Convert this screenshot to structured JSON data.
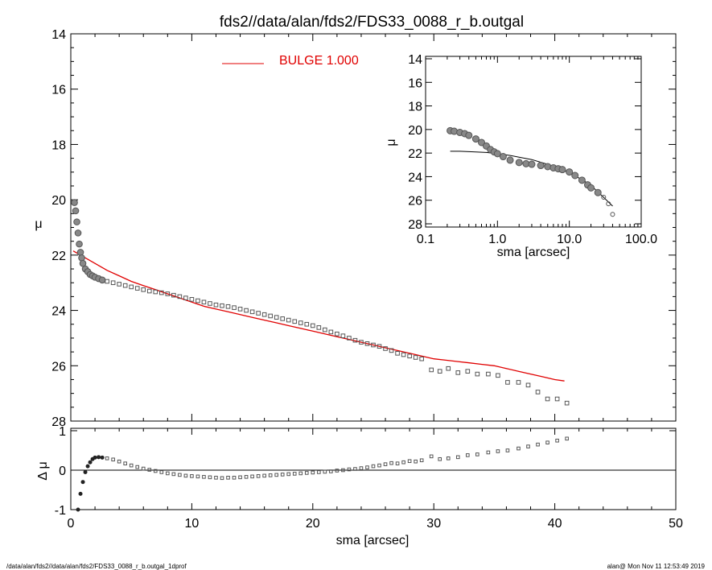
{
  "title": "fds2//data/alan/fds2/FDS33_0088_r_b.outgal",
  "footer": {
    "left": "/data/alan/fds2//data/alan/fds2/FDS33_0088_r_b.outgal_1dprof",
    "right": "alan@  Mon Nov 11 12:53:49 2019"
  },
  "colors": {
    "model": "#e00000",
    "data": "#555555",
    "axis": "#000000"
  },
  "chart_data": [
    {
      "type": "scatter",
      "name": "main-profile",
      "xlabel": "",
      "ylabel": "μ",
      "xlim": [
        0,
        50
      ],
      "ylim": [
        28,
        14
      ],
      "yticks": [
        14,
        16,
        18,
        20,
        22,
        24,
        26,
        28
      ],
      "legend": {
        "label": "BULGE  1.000",
        "placement": "top-center"
      },
      "series": [
        {
          "name": "data",
          "x": [
            0.3,
            0.4,
            0.5,
            0.6,
            0.7,
            0.8,
            0.9,
            1.0,
            1.2,
            1.4,
            1.6,
            1.8,
            2.0,
            2.3,
            2.6,
            3.0,
            3.5,
            4.0,
            4.5,
            5.0,
            5.5,
            6.0,
            6.5,
            7.0,
            7.5,
            8.0,
            8.5,
            9.0,
            9.5,
            10.0,
            10.5,
            11.0,
            11.5,
            12.0,
            12.5,
            13.0,
            13.5,
            14.0,
            14.5,
            15.0,
            15.5,
            16.0,
            16.5,
            17.0,
            17.5,
            18.0,
            18.5,
            19.0,
            19.5,
            20.0,
            20.5,
            21.0,
            21.5,
            22.0,
            22.5,
            23.0,
            23.5,
            24.0,
            24.5,
            25.0,
            25.5,
            26.0,
            26.5,
            27.0,
            27.5,
            28.0,
            28.5,
            29.0,
            29.8,
            30.5,
            31.2,
            32.0,
            32.8,
            33.6,
            34.5,
            35.3,
            36.1,
            37.0,
            37.8,
            38.6,
            39.4,
            40.2,
            41.0
          ],
          "y": [
            20.1,
            20.4,
            20.8,
            21.2,
            21.6,
            21.9,
            22.1,
            22.3,
            22.5,
            22.6,
            22.7,
            22.75,
            22.8,
            22.85,
            22.9,
            22.95,
            23.0,
            23.05,
            23.1,
            23.15,
            23.2,
            23.25,
            23.3,
            23.33,
            23.36,
            23.4,
            23.45,
            23.5,
            23.55,
            23.6,
            23.65,
            23.7,
            23.75,
            23.8,
            23.83,
            23.86,
            23.9,
            23.95,
            24.0,
            24.05,
            24.1,
            24.15,
            24.2,
            24.25,
            24.3,
            24.35,
            24.4,
            24.45,
            24.5,
            24.55,
            24.62,
            24.7,
            24.78,
            24.85,
            24.92,
            25.0,
            25.08,
            25.15,
            25.2,
            25.25,
            25.3,
            25.38,
            25.45,
            25.55,
            25.6,
            25.65,
            25.7,
            25.75,
            26.15,
            26.2,
            26.1,
            26.25,
            26.2,
            26.3,
            26.3,
            26.35,
            26.6,
            26.6,
            26.7,
            26.95,
            27.2,
            27.2,
            27.35
          ]
        },
        {
          "name": "BULGE  1.000",
          "x": [
            0.2,
            1,
            2,
            3,
            4,
            5,
            6,
            7,
            8,
            9,
            10,
            11,
            12,
            13,
            14,
            15,
            16,
            17,
            18,
            19,
            20,
            21,
            22,
            23,
            24,
            25,
            26,
            27,
            28,
            29,
            30,
            31,
            32,
            33,
            34,
            35,
            36,
            37,
            38,
            39,
            40,
            40.8
          ],
          "y": [
            21.85,
            22.05,
            22.3,
            22.55,
            22.75,
            22.95,
            23.1,
            23.25,
            23.4,
            23.55,
            23.7,
            23.85,
            23.95,
            24.05,
            24.15,
            24.25,
            24.35,
            24.45,
            24.55,
            24.65,
            24.75,
            24.85,
            24.95,
            25.05,
            25.15,
            25.25,
            25.35,
            25.45,
            25.55,
            25.65,
            25.75,
            25.8,
            25.85,
            25.9,
            25.95,
            26.0,
            26.1,
            26.2,
            26.3,
            26.4,
            26.5,
            26.55
          ]
        }
      ]
    },
    {
      "type": "scatter",
      "name": "residuals",
      "xlabel": "sma [arcsec]",
      "ylabel": "Δ μ",
      "xlim": [
        0,
        50
      ],
      "ylim": [
        -1,
        1
      ],
      "xticks": [
        0,
        10,
        20,
        30,
        40,
        50
      ],
      "yticks": [
        -1,
        0,
        1
      ],
      "series": [
        {
          "name": "residual",
          "x": [
            0.6,
            0.8,
            1.0,
            1.2,
            1.4,
            1.6,
            1.8,
            2.0,
            2.3,
            2.6,
            3.0,
            3.5,
            4.0,
            4.5,
            5.0,
            5.5,
            6.0,
            6.5,
            7.0,
            7.5,
            8.0,
            8.5,
            9.0,
            9.5,
            10.0,
            10.5,
            11.0,
            11.5,
            12.0,
            12.5,
            13.0,
            13.5,
            14.0,
            14.5,
            15.0,
            15.5,
            16.0,
            16.5,
            17.0,
            17.5,
            18.0,
            18.5,
            19.0,
            19.5,
            20.0,
            20.5,
            21.0,
            21.5,
            22.0,
            22.5,
            23.0,
            23.5,
            24.0,
            24.5,
            25.0,
            25.5,
            26.0,
            26.5,
            27.0,
            27.5,
            28.0,
            28.5,
            29.0,
            29.8,
            30.5,
            31.2,
            32.0,
            32.8,
            33.6,
            34.5,
            35.3,
            36.1,
            37.0,
            37.8,
            38.6,
            39.4,
            40.2,
            41.0
          ],
          "y": [
            -1.0,
            -0.6,
            -0.3,
            -0.05,
            0.1,
            0.2,
            0.28,
            0.32,
            0.33,
            0.32,
            0.3,
            0.27,
            0.22,
            0.17,
            0.12,
            0.08,
            0.04,
            0.01,
            -0.02,
            -0.05,
            -0.08,
            -0.1,
            -0.12,
            -0.14,
            -0.15,
            -0.16,
            -0.17,
            -0.18,
            -0.19,
            -0.2,
            -0.19,
            -0.19,
            -0.18,
            -0.17,
            -0.16,
            -0.15,
            -0.14,
            -0.13,
            -0.12,
            -0.11,
            -0.1,
            -0.09,
            -0.08,
            -0.07,
            -0.06,
            -0.05,
            -0.04,
            -0.03,
            -0.01,
            0.0,
            0.02,
            0.03,
            0.05,
            0.07,
            0.1,
            0.12,
            0.15,
            0.18,
            0.17,
            0.2,
            0.23,
            0.22,
            0.25,
            0.35,
            0.28,
            0.3,
            0.33,
            0.38,
            0.4,
            0.45,
            0.48,
            0.5,
            0.55,
            0.6,
            0.65,
            0.7,
            0.75,
            0.8
          ]
        }
      ]
    },
    {
      "type": "scatter",
      "name": "inset-log-profile",
      "xlabel": "sma [arcsec]",
      "ylabel": "μ",
      "xscale": "log",
      "xlim": [
        0.1,
        100
      ],
      "ylim": [
        28,
        14
      ],
      "xticks": [
        "0.1",
        "1.0",
        "10.0",
        "100.0"
      ],
      "yticks": [
        14,
        16,
        18,
        20,
        22,
        24,
        26,
        28
      ],
      "series": [
        {
          "name": "data",
          "x": [
            0.22,
            0.25,
            0.3,
            0.35,
            0.4,
            0.5,
            0.6,
            0.7,
            0.8,
            0.9,
            1.0,
            1.2,
            1.5,
            2.0,
            2.5,
            3.0,
            4.0,
            5.0,
            6.0,
            7.0,
            8.0,
            10.0,
            12.0,
            15.0,
            18.0,
            20.0,
            25.0,
            30.0,
            35.0,
            40.0
          ],
          "y": [
            20.1,
            20.15,
            20.25,
            20.35,
            20.5,
            20.8,
            21.1,
            21.4,
            21.7,
            21.9,
            22.05,
            22.3,
            22.6,
            22.8,
            22.9,
            22.95,
            23.05,
            23.15,
            23.25,
            23.33,
            23.4,
            23.6,
            23.9,
            24.3,
            24.7,
            24.95,
            25.35,
            25.75,
            26.3,
            27.2
          ]
        },
        {
          "name": "model",
          "x": [
            0.22,
            0.3,
            0.5,
            0.7,
            1.0,
            1.5,
            2.0,
            3.0,
            5.0,
            7.0,
            10.0,
            15.0,
            20.0,
            30.0,
            40.0
          ],
          "y": [
            21.85,
            21.85,
            21.9,
            21.95,
            22.05,
            22.2,
            22.35,
            22.55,
            22.95,
            23.25,
            23.7,
            24.25,
            24.75,
            25.75,
            26.5
          ]
        }
      ]
    }
  ]
}
